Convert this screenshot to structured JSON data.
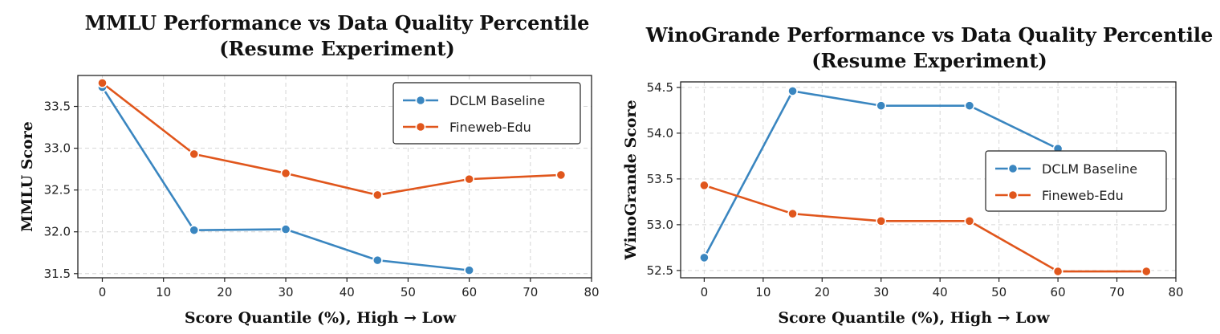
{
  "chart_data": [
    {
      "type": "line",
      "title": [
        "MMLU Performance vs Data Quality Percentile",
        "(Resume Experiment)"
      ],
      "xlabel": "Score Quantile (%), High → Low",
      "ylabel": "MMLU Score",
      "xlim": [
        -4,
        80
      ],
      "ylim": [
        31.45,
        33.87
      ],
      "xticks": [
        0,
        10,
        20,
        30,
        40,
        50,
        60,
        70,
        80
      ],
      "yticks": [
        31.5,
        32.0,
        32.5,
        33.0,
        33.5
      ],
      "ytick_labels": [
        "31.5",
        "32.0",
        "32.5",
        "33.0",
        "33.5"
      ],
      "grid": true,
      "legend_loc": "upper right",
      "series": [
        {
          "name": "DCLM Baseline",
          "color": "#3a86c0",
          "x": [
            0,
            15,
            30,
            45,
            60
          ],
          "y": [
            33.73,
            32.02,
            32.03,
            31.66,
            31.54
          ]
        },
        {
          "name": "Fineweb-Edu",
          "color": "#e0561c",
          "x": [
            0,
            15,
            30,
            45,
            60,
            75
          ],
          "y": [
            33.78,
            32.93,
            32.7,
            32.44,
            32.63,
            32.68
          ]
        }
      ]
    },
    {
      "type": "line",
      "title": [
        "WinoGrande Performance vs Data Quality Percentile",
        "(Resume Experiment)"
      ],
      "xlabel": "Score Quantile (%), High → Low",
      "ylabel": "WinoGrande Score",
      "xlim": [
        -4,
        80
      ],
      "ylim": [
        52.42,
        54.56
      ],
      "xticks": [
        0,
        10,
        20,
        30,
        40,
        50,
        60,
        70,
        80
      ],
      "yticks": [
        52.5,
        53.0,
        53.5,
        54.0,
        54.5
      ],
      "ytick_labels": [
        "52.5",
        "53.0",
        "53.5",
        "54.0",
        "54.5"
      ],
      "grid": true,
      "legend_loc": "center right",
      "series": [
        {
          "name": "DCLM Baseline",
          "color": "#3a86c0",
          "x": [
            0,
            15,
            30,
            45,
            60
          ],
          "y": [
            52.64,
            54.46,
            54.3,
            54.3,
            53.83
          ]
        },
        {
          "name": "Fineweb-Edu",
          "color": "#e0561c",
          "x": [
            0,
            15,
            30,
            45,
            60,
            75
          ],
          "y": [
            53.43,
            53.12,
            53.04,
            53.04,
            52.49,
            52.49
          ]
        }
      ]
    }
  ]
}
